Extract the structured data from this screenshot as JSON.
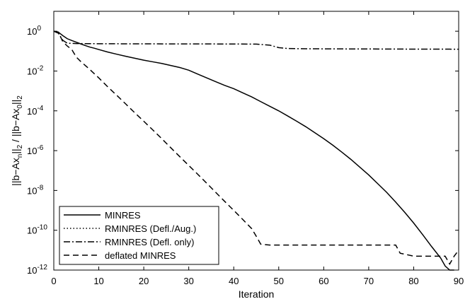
{
  "chart_data": {
    "type": "line",
    "title": "",
    "xlabel": "Iteration",
    "ylabel": "||b−Ax_n||_2 / ||b−Ax_0||_2",
    "ylabel_parts": [
      "||b−Ax",
      "n",
      "||",
      "2",
      " / ||b−Ax",
      "0",
      "||",
      "2"
    ],
    "xlim": [
      0,
      90
    ],
    "ylim": [
      1e-12,
      10
    ],
    "yscale": "log",
    "xticks": [
      0,
      10,
      20,
      30,
      40,
      50,
      60,
      70,
      80,
      90
    ],
    "yticks": [
      {
        "value": 1.0,
        "base": "10",
        "exp": "0"
      },
      {
        "value": 0.01,
        "base": "10",
        "exp": "-2"
      },
      {
        "value": 0.0001,
        "base": "10",
        "exp": "-4"
      },
      {
        "value": 1e-06,
        "base": "10",
        "exp": "-6"
      },
      {
        "value": 1e-08,
        "base": "10",
        "exp": "-8"
      },
      {
        "value": 1e-10,
        "base": "10",
        "exp": "-10"
      },
      {
        "value": 1e-12,
        "base": "10",
        "exp": "-12"
      }
    ],
    "grid": false,
    "legend_position": "bottom-left",
    "series": [
      {
        "name": "MINRES",
        "style": "solid",
        "color": "#000000",
        "points": [
          [
            0,
            1.0
          ],
          [
            1,
            0.9
          ],
          [
            2,
            0.6
          ],
          [
            3,
            0.42
          ],
          [
            4,
            0.34
          ],
          [
            5,
            0.28
          ],
          [
            6,
            0.23
          ],
          [
            7,
            0.19
          ],
          [
            8,
            0.16
          ],
          [
            9,
            0.14
          ],
          [
            10,
            0.12
          ],
          [
            12,
            0.09
          ],
          [
            14,
            0.07
          ],
          [
            16,
            0.055
          ],
          [
            18,
            0.044
          ],
          [
            20,
            0.035
          ],
          [
            22,
            0.029
          ],
          [
            24,
            0.024
          ],
          [
            26,
            0.019
          ],
          [
            28,
            0.015
          ],
          [
            30,
            0.011
          ],
          [
            32,
            0.007
          ],
          [
            34,
            0.0045
          ],
          [
            36,
            0.0029
          ],
          [
            38,
            0.0019
          ],
          [
            40,
            0.0013
          ],
          [
            42,
            0.0008
          ],
          [
            44,
            0.0005
          ],
          [
            46,
            0.00029
          ],
          [
            48,
            0.00017
          ],
          [
            50,
            0.0001
          ],
          [
            52,
            5.5e-05
          ],
          [
            54,
            3e-05
          ],
          [
            56,
            1.6e-05
          ],
          [
            58,
            8e-06
          ],
          [
            60,
            4e-06
          ],
          [
            62,
            1.9e-06
          ],
          [
            64,
            8.5e-07
          ],
          [
            66,
            3.7e-07
          ],
          [
            68,
            1.5e-07
          ],
          [
            70,
            6e-08
          ],
          [
            72,
            2.2e-08
          ],
          [
            74,
            8e-09
          ],
          [
            76,
            2.6e-09
          ],
          [
            78,
            8e-10
          ],
          [
            80,
            2.3e-10
          ],
          [
            82,
            6e-11
          ],
          [
            84,
            1.5e-11
          ],
          [
            86,
            4e-12
          ],
          [
            87,
            1.6e-12
          ],
          [
            88,
            1e-12
          ],
          [
            89,
            1e-12
          ]
        ]
      },
      {
        "name": "RMINRES (Defl./Aug.)",
        "style": "dotted",
        "color": "#000000",
        "points": []
      },
      {
        "name": "RMINRES (Defl. only)",
        "style": "dashdot",
        "color": "#000000",
        "points": [
          [
            0,
            1.0
          ],
          [
            1,
            0.8
          ],
          [
            2,
            0.35
          ],
          [
            3,
            0.25
          ],
          [
            5,
            0.24
          ],
          [
            10,
            0.235
          ],
          [
            20,
            0.232
          ],
          [
            30,
            0.23
          ],
          [
            40,
            0.228
          ],
          [
            45,
            0.225
          ],
          [
            48,
            0.2
          ],
          [
            50,
            0.15
          ],
          [
            52,
            0.135
          ],
          [
            55,
            0.132
          ],
          [
            60,
            0.13
          ],
          [
            70,
            0.128
          ],
          [
            80,
            0.126
          ],
          [
            90,
            0.125
          ]
        ]
      },
      {
        "name": "deflated MINRES",
        "style": "dashed",
        "color": "#000000",
        "points": [
          [
            0,
            1.0
          ],
          [
            1,
            0.9
          ],
          [
            2,
            0.3
          ],
          [
            3,
            0.18
          ],
          [
            4,
            0.12
          ],
          [
            5,
            0.05
          ],
          [
            6,
            0.03
          ],
          [
            8,
            0.012
          ],
          [
            10,
            0.0045
          ],
          [
            12,
            0.0016
          ],
          [
            14,
            0.0006
          ],
          [
            16,
            0.00022
          ],
          [
            18,
            8e-05
          ],
          [
            20,
            3e-05
          ],
          [
            22,
            1.1e-05
          ],
          [
            24,
            4e-06
          ],
          [
            26,
            1.4e-06
          ],
          [
            28,
            5e-07
          ],
          [
            30,
            1.8e-07
          ],
          [
            32,
            6.5e-08
          ],
          [
            34,
            2.3e-08
          ],
          [
            36,
            8e-09
          ],
          [
            38,
            2.8e-09
          ],
          [
            40,
            1e-09
          ],
          [
            42,
            3.5e-10
          ],
          [
            44,
            1.2e-10
          ],
          [
            45,
            5e-11
          ],
          [
            46,
            2e-11
          ],
          [
            48,
            1.8e-11
          ],
          [
            55,
            1.8e-11
          ],
          [
            65,
            1.8e-11
          ],
          [
            75,
            1.8e-11
          ],
          [
            76,
            1.8e-11
          ],
          [
            77,
            7e-12
          ],
          [
            80,
            5e-12
          ],
          [
            85,
            5e-12
          ],
          [
            87,
            5e-12
          ],
          [
            88,
            2e-12
          ],
          [
            89,
            5e-12
          ],
          [
            90,
            1e-11
          ]
        ]
      }
    ]
  }
}
